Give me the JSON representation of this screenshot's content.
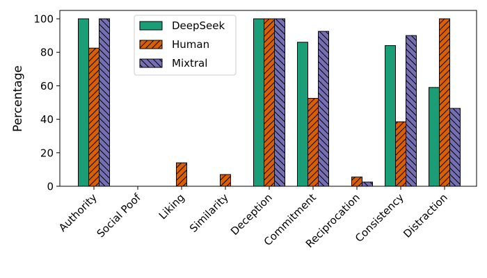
{
  "chart_data": {
    "type": "bar",
    "ylabel": "Percentage",
    "xlabel": "",
    "ylim": [
      0,
      105
    ],
    "yticks": [
      0,
      20,
      40,
      60,
      80,
      100
    ],
    "categories": [
      "Authority",
      "Social Poof",
      "Liking",
      "Similarity",
      "Deception",
      "Commitment",
      "Reciprocation",
      "Consistency",
      "Distraction"
    ],
    "series": [
      {
        "name": "DeepSeek",
        "color": "#1b9e77",
        "hatch": "none",
        "values": [
          100,
          0,
          0,
          0,
          100,
          86,
          0,
          84,
          59
        ]
      },
      {
        "name": "Human",
        "color": "#d95f02",
        "hatch": "forward",
        "values": [
          82.5,
          0,
          14,
          7,
          100,
          52.5,
          5.5,
          38.5,
          100
        ]
      },
      {
        "name": "Mixtral",
        "color": "#7570b3",
        "hatch": "back",
        "values": [
          100,
          0,
          0,
          0,
          100,
          92.5,
          2.5,
          90,
          46.5
        ]
      }
    ],
    "legend": "top-left",
    "grid": false
  }
}
